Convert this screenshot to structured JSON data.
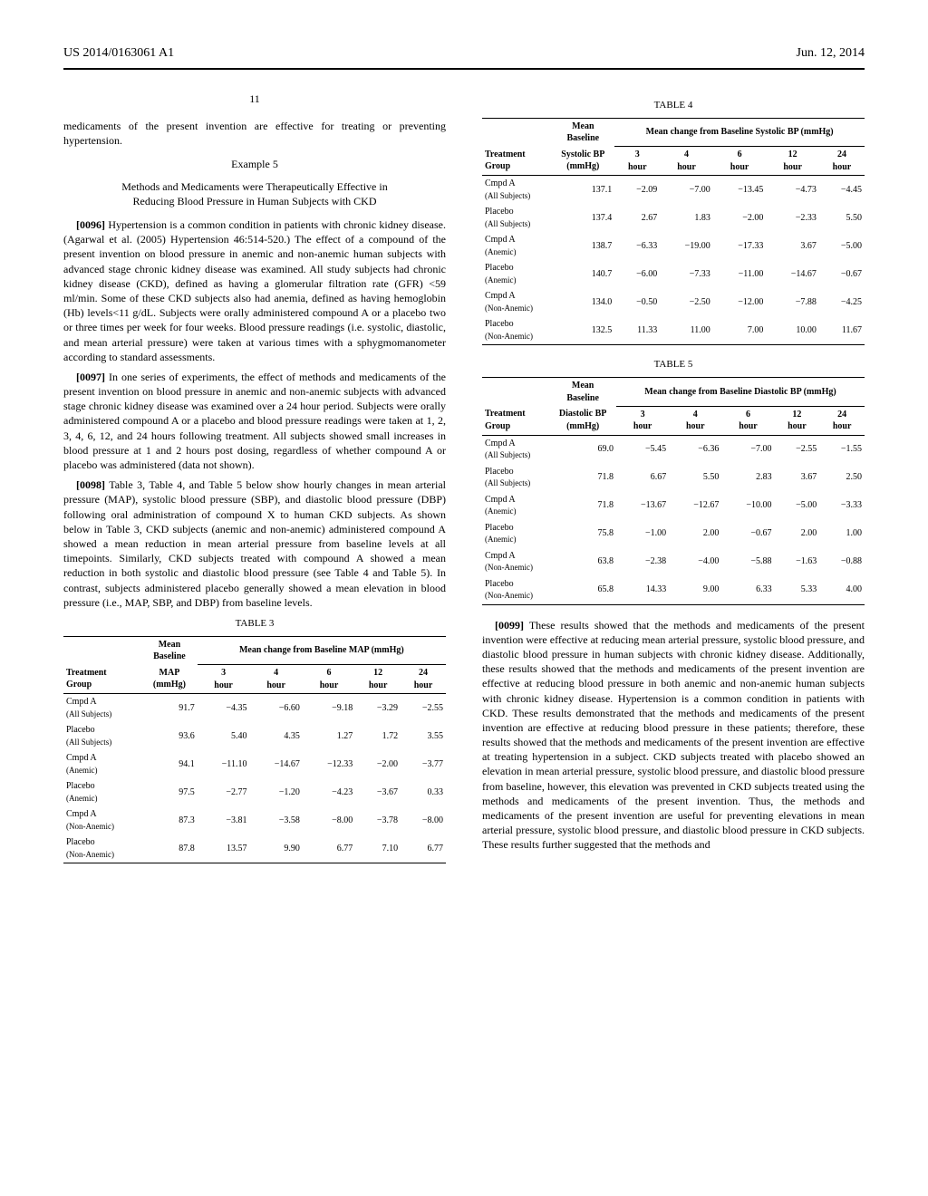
{
  "header": {
    "pub_number": "US 2014/0163061 A1",
    "pub_date": "Jun. 12, 2014",
    "page_number": "11"
  },
  "left": {
    "intro_cont": "medicaments of the present invention are effective for treating or preventing hypertension.",
    "example_num": "Example 5",
    "example_title": "Methods and Medicaments were Therapeutically Effective in Reducing Blood Pressure in Human Subjects with CKD",
    "p0096_num": "[0096]",
    "p0096": "Hypertension is a common condition in patients with chronic kidney disease. (Agarwal et al. (2005) Hypertension 46:514-520.) The effect of a compound of the present invention on blood pressure in anemic and non-anemic human subjects with advanced stage chronic kidney disease was examined. All study subjects had chronic kidney disease (CKD), defined as having a glomerular filtration rate (GFR) <59 ml/min. Some of these CKD subjects also had anemia, defined as having hemoglobin (Hb) levels<11 g/dL. Subjects were orally administered compound A or a placebo two or three times per week for four weeks. Blood pressure readings (i.e. systolic, diastolic, and mean arterial pressure) were taken at various times with a sphygmomanometer according to standard assessments.",
    "p0097_num": "[0097]",
    "p0097": "In one series of experiments, the effect of methods and medicaments of the present invention on blood pressure in anemic and non-anemic subjects with advanced stage chronic kidney disease was examined over a 24 hour period. Subjects were orally administered compound A or a placebo and blood pressure readings were taken at 1, 2, 3, 4, 6, 12, and 24 hours following treatment. All subjects showed small increases in blood pressure at 1 and 2 hours post dosing, regardless of whether compound A or placebo was administered (data not shown).",
    "p0098_num": "[0098]",
    "p0098": "Table 3, Table 4, and Table 5 below show hourly changes in mean arterial pressure (MAP), systolic blood pressure (SBP), and diastolic blood pressure (DBP) following oral administration of compound X to human CKD subjects. As shown below in Table 3, CKD subjects (anemic and non-anemic) administered compound A showed a mean reduction in mean arterial pressure from baseline levels at all timepoints. Similarly, CKD subjects treated with compound A showed a mean reduction in both systolic and diastolic blood pressure (see Table 4 and Table 5). In contrast, subjects administered placebo generally showed a mean elevation in blood pressure (i.e., MAP, SBP, and DBP) from baseline levels."
  },
  "right": {
    "p0099_num": "[0099]",
    "p0099": "These results showed that the methods and medicaments of the present invention were effective at reducing mean arterial pressure, systolic blood pressure, and diastolic blood pressure in human subjects with chronic kidney disease. Additionally, these results showed that the methods and medicaments of the present invention are effective at reducing blood pressure in both anemic and non-anemic human subjects with chronic kidney disease. Hypertension is a common condition in patients with CKD. These results demonstrated that the methods and medicaments of the present invention are effective at reducing blood pressure in these patients; therefore, these results showed that the methods and medicaments of the present invention are effective at treating hypertension in a subject. CKD subjects treated with placebo showed an elevation in mean arterial pressure, systolic blood pressure, and diastolic blood pressure from baseline, however, this elevation was prevented in CKD subjects treated using the methods and medicaments of the present invention. Thus, the methods and medicaments of the present invention are useful for preventing elevations in mean arterial pressure, systolic blood pressure, and diastolic blood pressure in CKD subjects. These results further suggested that the methods and"
  },
  "tables": {
    "t3": {
      "caption": "TABLE 3",
      "baseline_head1": "Mean",
      "baseline_head2": "Baseline",
      "span_head": "Mean change from Baseline MAP (mmHg)",
      "col_group": "Treatment Group",
      "col_baseline": "MAP (mmHg)",
      "cols": [
        "3 hour",
        "4 hour",
        "6 hour",
        "12 hour",
        "24 hour"
      ],
      "rows": [
        {
          "label": "Cmpd A",
          "sub": "(All Subjects)",
          "baseline": "91.7",
          "v": [
            "−4.35",
            "−6.60",
            "−9.18",
            "−3.29",
            "−2.55"
          ]
        },
        {
          "label": "Placebo",
          "sub": "(All Subjects)",
          "baseline": "93.6",
          "v": [
            "5.40",
            "4.35",
            "1.27",
            "1.72",
            "3.55"
          ]
        },
        {
          "label": "Cmpd A",
          "sub": "(Anemic)",
          "baseline": "94.1",
          "v": [
            "−11.10",
            "−14.67",
            "−12.33",
            "−2.00",
            "−3.77"
          ]
        },
        {
          "label": "Placebo",
          "sub": "(Anemic)",
          "baseline": "97.5",
          "v": [
            "−2.77",
            "−1.20",
            "−4.23",
            "−3.67",
            "0.33"
          ]
        },
        {
          "label": "Cmpd A",
          "sub": "(Non-Anemic)",
          "baseline": "87.3",
          "v": [
            "−3.81",
            "−3.58",
            "−8.00",
            "−3.78",
            "−8.00"
          ]
        },
        {
          "label": "Placebo",
          "sub": "(Non-Anemic)",
          "baseline": "87.8",
          "v": [
            "13.57",
            "9.90",
            "6.77",
            "7.10",
            "6.77"
          ]
        }
      ]
    },
    "t4": {
      "caption": "TABLE 4",
      "baseline_head1": "Mean",
      "baseline_head2": "Baseline",
      "span_head": "Mean change from Baseline Systolic BP (mmHg)",
      "col_group": "Treatment Group",
      "col_baseline": "Systolic BP (mmHg)",
      "cols": [
        "3 hour",
        "4 hour",
        "6 hour",
        "12 hour",
        "24 hour"
      ],
      "rows": [
        {
          "label": "Cmpd A",
          "sub": "(All Subjects)",
          "baseline": "137.1",
          "v": [
            "−2.09",
            "−7.00",
            "−13.45",
            "−4.73",
            "−4.45"
          ]
        },
        {
          "label": "Placebo",
          "sub": "(All Subjects)",
          "baseline": "137.4",
          "v": [
            "2.67",
            "1.83",
            "−2.00",
            "−2.33",
            "5.50"
          ]
        },
        {
          "label": "Cmpd A",
          "sub": "(Anemic)",
          "baseline": "138.7",
          "v": [
            "−6.33",
            "−19.00",
            "−17.33",
            "3.67",
            "−5.00"
          ]
        },
        {
          "label": "Placebo",
          "sub": "(Anemic)",
          "baseline": "140.7",
          "v": [
            "−6.00",
            "−7.33",
            "−11.00",
            "−14.67",
            "−0.67"
          ]
        },
        {
          "label": "Cmpd A",
          "sub": "(Non-Anemic)",
          "baseline": "134.0",
          "v": [
            "−0.50",
            "−2.50",
            "−12.00",
            "−7.88",
            "−4.25"
          ]
        },
        {
          "label": "Placebo",
          "sub": "(Non-Anemic)",
          "baseline": "132.5",
          "v": [
            "11.33",
            "11.00",
            "7.00",
            "10.00",
            "11.67"
          ]
        }
      ]
    },
    "t5": {
      "caption": "TABLE 5",
      "baseline_head1": "Mean",
      "baseline_head2": "Baseline",
      "span_head": "Mean change from Baseline Diastolic BP (mmHg)",
      "col_group": "Treatment Group",
      "col_baseline": "Diastolic BP (mmHg)",
      "cols": [
        "3 hour",
        "4 hour",
        "6 hour",
        "12 hour",
        "24 hour"
      ],
      "rows": [
        {
          "label": "Cmpd A",
          "sub": "(All Subjects)",
          "baseline": "69.0",
          "v": [
            "−5.45",
            "−6.36",
            "−7.00",
            "−2.55",
            "−1.55"
          ]
        },
        {
          "label": "Placebo",
          "sub": "(All Subjects)",
          "baseline": "71.8",
          "v": [
            "6.67",
            "5.50",
            "2.83",
            "3.67",
            "2.50"
          ]
        },
        {
          "label": "Cmpd A",
          "sub": "(Anemic)",
          "baseline": "71.8",
          "v": [
            "−13.67",
            "−12.67",
            "−10.00",
            "−5.00",
            "−3.33"
          ]
        },
        {
          "label": "Placebo",
          "sub": "(Anemic)",
          "baseline": "75.8",
          "v": [
            "−1.00",
            "2.00",
            "−0.67",
            "2.00",
            "1.00"
          ]
        },
        {
          "label": "Cmpd A",
          "sub": "(Non-Anemic)",
          "baseline": "63.8",
          "v": [
            "−2.38",
            "−4.00",
            "−5.88",
            "−1.63",
            "−0.88"
          ]
        },
        {
          "label": "Placebo",
          "sub": "(Non-Anemic)",
          "baseline": "65.8",
          "v": [
            "14.33",
            "9.00",
            "6.33",
            "5.33",
            "4.00"
          ]
        }
      ]
    }
  }
}
